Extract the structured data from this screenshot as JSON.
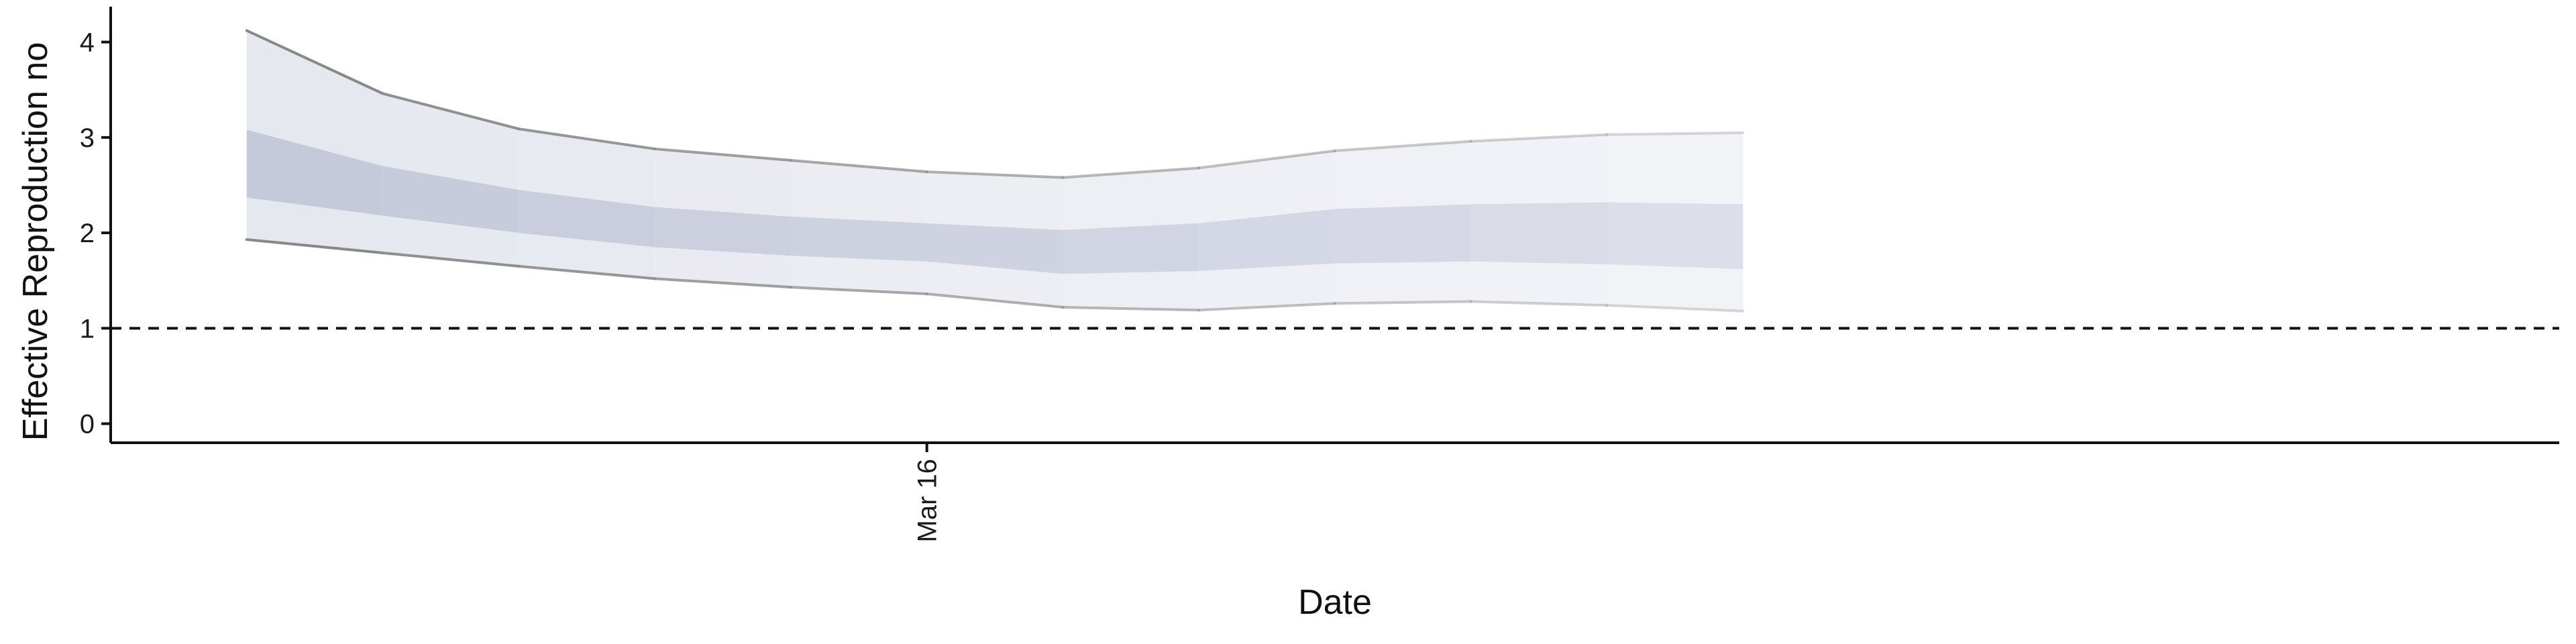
{
  "chart_data": {
    "type": "area",
    "title": "",
    "xlabel": "Date",
    "ylabel": "Effective Reproduction no",
    "ylim": [
      -0.2,
      4.3
    ],
    "xlim": [
      "2020-03-10",
      "2020-03-28"
    ],
    "yticks": [
      0,
      1,
      2,
      3,
      4
    ],
    "xticks": [
      {
        "date": "2020-03-16",
        "label": "Mar 16"
      }
    ],
    "reference_line": {
      "y": 1,
      "style": "dashed"
    },
    "grid": false,
    "legend": "none",
    "x": [
      "2020-03-11",
      "2020-03-12",
      "2020-03-13",
      "2020-03-14",
      "2020-03-15",
      "2020-03-16",
      "2020-03-17",
      "2020-03-18",
      "2020-03-19",
      "2020-03-20",
      "2020-03-21",
      "2020-03-22"
    ],
    "series": [
      {
        "band": "outer",
        "lower": [
          1.93,
          1.79,
          1.65,
          1.52,
          1.43,
          1.36,
          1.22,
          1.19,
          1.26,
          1.28,
          1.24,
          1.18
        ],
        "upper": [
          4.12,
          3.46,
          3.09,
          2.88,
          2.76,
          2.64,
          2.58,
          2.68,
          2.86,
          2.96,
          3.03,
          3.05
        ]
      },
      {
        "band": "inner",
        "lower": [
          2.37,
          2.18,
          2.0,
          1.85,
          1.76,
          1.7,
          1.57,
          1.6,
          1.68,
          1.7,
          1.67,
          1.62
        ],
        "upper": [
          3.08,
          2.7,
          2.45,
          2.27,
          2.17,
          2.1,
          2.03,
          2.1,
          2.25,
          2.3,
          2.32,
          2.3
        ]
      }
    ],
    "colors": {
      "outer_band": "#e6e8f0",
      "inner_band": "#c5cadb",
      "bound_line": "#888888",
      "axis": "#111111"
    }
  }
}
